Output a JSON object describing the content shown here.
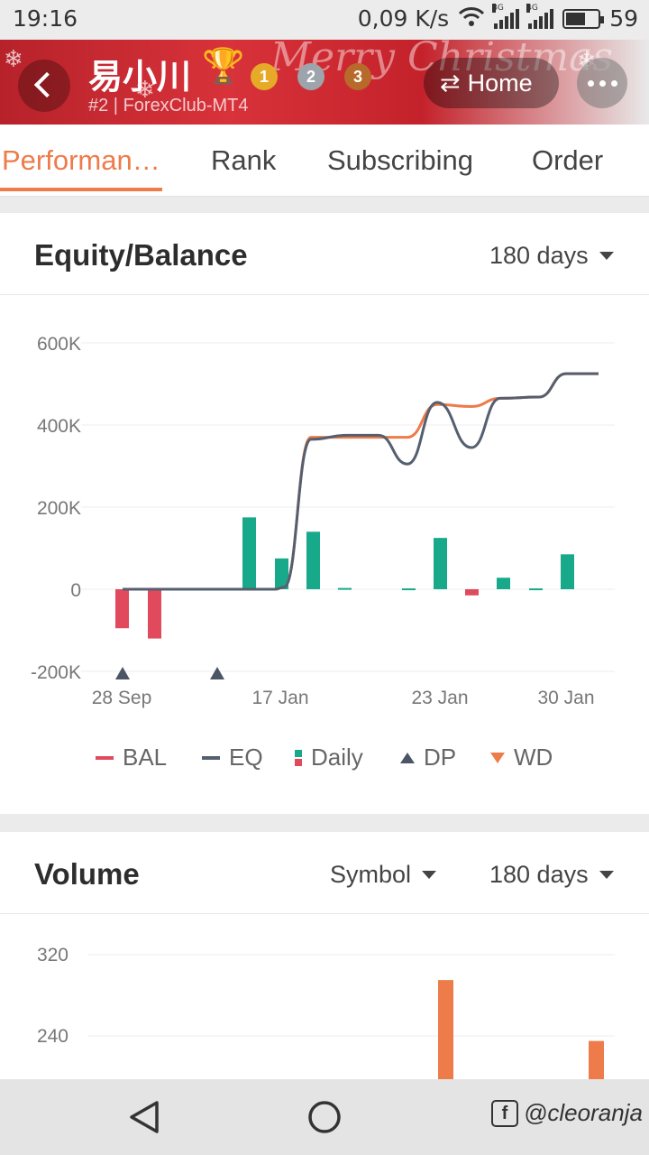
{
  "status": {
    "time": "19:16",
    "speed": "0,09 K/s",
    "net1": "3G",
    "net2": "4G",
    "battery": "59"
  },
  "header": {
    "name": "易小川",
    "sub_rank": "#2",
    "sub_server": "ForexClub-MT4",
    "deco_text": "Merry Christmas",
    "home_label": "Home",
    "medals": [
      "1",
      "2",
      "3"
    ]
  },
  "tabs": [
    {
      "label": "Performan…",
      "active": true
    },
    {
      "label": "Rank",
      "active": false
    },
    {
      "label": "Subscribing",
      "active": false
    },
    {
      "label": "Order",
      "active": false
    }
  ],
  "equity_card": {
    "title": "Equity/Balance",
    "period": "180 days"
  },
  "volume_card": {
    "title": "Volume",
    "symbol": "Symbol",
    "period": "180 days"
  },
  "watermark": "@cleoranja",
  "colors": {
    "accent": "#ee7b4a",
    "bal": "#e04a5c",
    "eq": "#555f70",
    "daily_pos": "#18a98b",
    "daily_neg": "#e04a5c",
    "wd": "#ee7b4a",
    "dp": "#4a5566"
  },
  "chart_data": [
    {
      "type": "line",
      "title": "Equity/Balance",
      "yticks": [
        "600K",
        "400K",
        "200K",
        "0",
        "-200K"
      ],
      "ylim": [
        -200000,
        600000
      ],
      "xticks": [
        "28 Sep",
        "17 Jan",
        "23 Jan",
        "30 Jan"
      ],
      "legend": [
        "BAL",
        "EQ",
        "Daily",
        "DP",
        "WD"
      ],
      "legend_position": "bottom",
      "series": [
        {
          "name": "BAL",
          "values": [
            0,
            0,
            0,
            0,
            0,
            5000,
            370000,
            370000,
            370000,
            370000,
            450000,
            445000,
            465000,
            468000,
            525000,
            525000
          ]
        },
        {
          "name": "EQ",
          "values": [
            0,
            0,
            0,
            0,
            0,
            5000,
            365000,
            375000,
            375000,
            305000,
            455000,
            345000,
            465000,
            468000,
            525000,
            525000
          ]
        }
      ],
      "daily": [
        -95000,
        -120000,
        175000,
        75000,
        140000,
        3000,
        2000,
        125000,
        -15000,
        28000,
        2000,
        85000
      ],
      "dp_markers": 2
    },
    {
      "type": "bar",
      "title": "Volume",
      "yticks": [
        "320",
        "240"
      ],
      "values": [
        295,
        235
      ]
    }
  ]
}
